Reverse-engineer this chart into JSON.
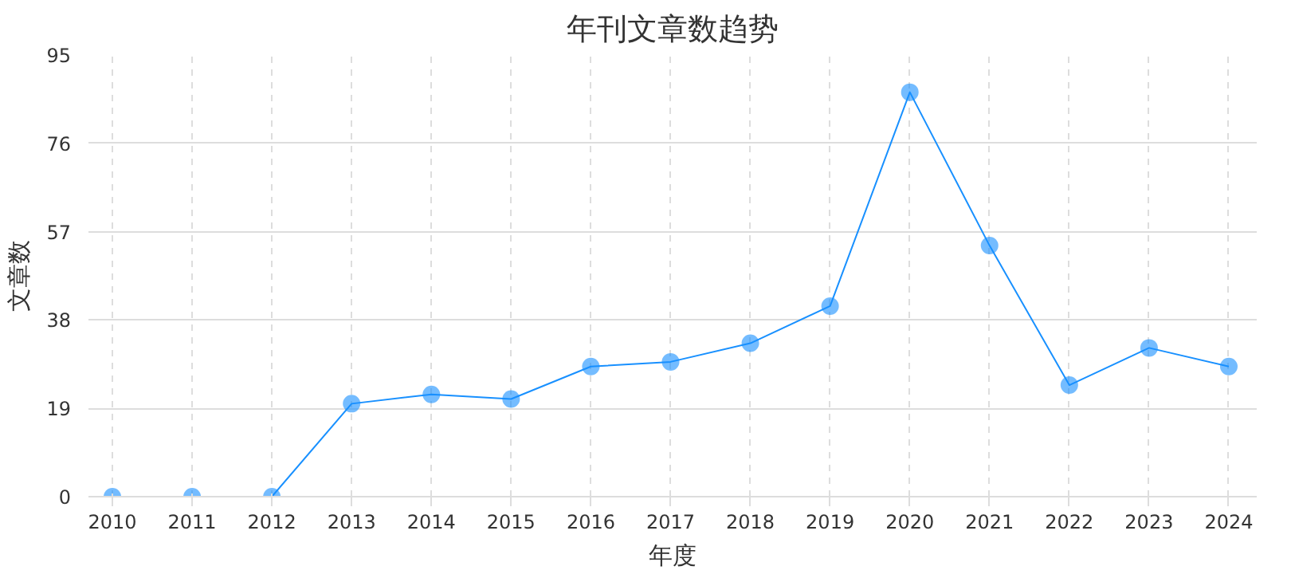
{
  "chart_data": {
    "type": "line",
    "title": "年刊文章数趋势",
    "xlabel": "年度",
    "ylabel": "文章数",
    "categories": [
      "2010",
      "2011",
      "2012",
      "2013",
      "2014",
      "2015",
      "2016",
      "2017",
      "2018",
      "2019",
      "2020",
      "2021",
      "2022",
      "2023",
      "2024"
    ],
    "series": [
      {
        "color": "#1890ff",
        "values": [
          0,
          0,
          0,
          20,
          22,
          21,
          28,
          29,
          33,
          41,
          87,
          54,
          24,
          32,
          28
        ]
      }
    ],
    "ylim": [
      0,
      95
    ],
    "yticks": [
      0,
      19,
      38,
      57,
      76,
      95
    ],
    "grid": true,
    "marker": "circle",
    "line_style": "solid"
  }
}
